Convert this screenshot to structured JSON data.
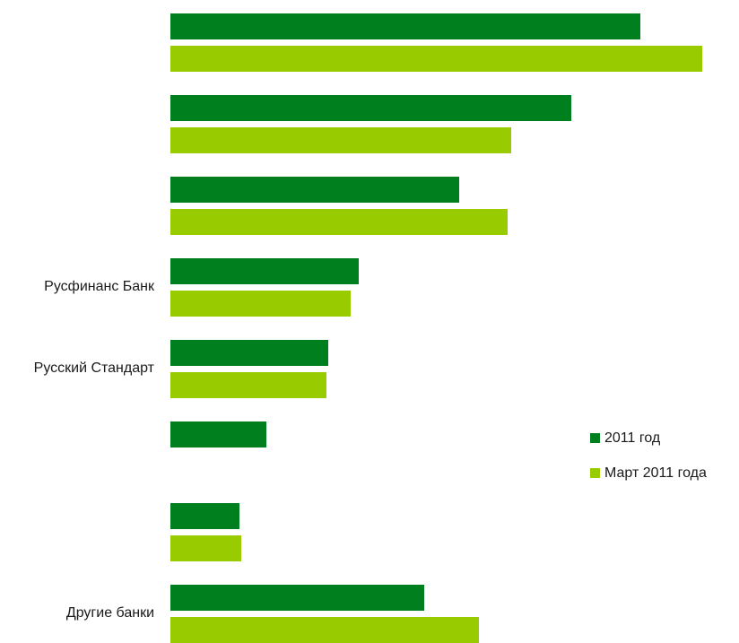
{
  "chart_data": {
    "type": "bar",
    "orientation": "horizontal",
    "categories": [
      "",
      "",
      "",
      "Русфинанс Банк",
      "Русский Стандарт",
      "",
      "",
      "Другие банки"
    ],
    "series": [
      {
        "name": "2011 год",
        "color": "#007f1f",
        "values": [
          524,
          447,
          322,
          210,
          176,
          107,
          77,
          283
        ]
      },
      {
        "name": "Март 2011 года",
        "color": "#99cc00",
        "values": [
          593,
          380,
          376,
          201,
          174,
          null,
          79,
          344
        ]
      }
    ],
    "title": "",
    "xlabel": "",
    "ylabel": "",
    "xlim": [
      0,
      600
    ],
    "grid": false,
    "legend_position": "right"
  }
}
